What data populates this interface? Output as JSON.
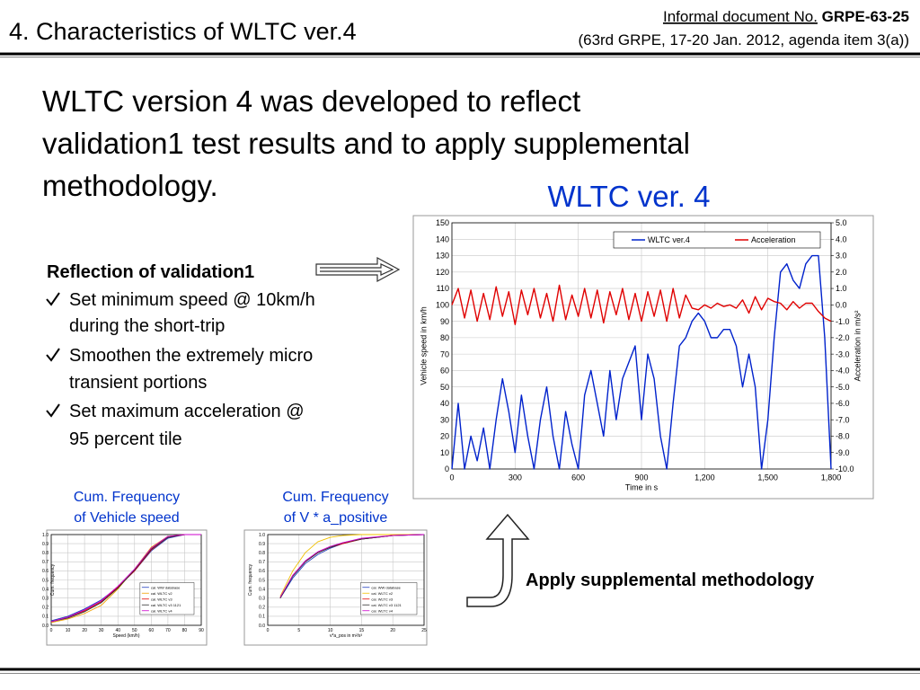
{
  "header": {
    "title": "4. Characteristics of WLTC ver.4",
    "document_label": "Informal document No.",
    "document_number": "GRPE-63-25",
    "meeting": "(63rd  GRPE,  17-20 Jan. 2012, agenda item 3(a))"
  },
  "body": {
    "lines": [
      "WLTC version 4 was developed to reflect",
      "validation1 test results and to apply supplemental",
      "methodology."
    ]
  },
  "reflection": {
    "heading": "Reflection of validation1",
    "bullets": [
      [
        "Set minimum speed @ 10km/h",
        "during the short-trip"
      ],
      [
        "Smoothen the extremely micro",
        "transient portions"
      ],
      [
        "Set maximum acceleration @",
        "95 percent tile"
      ]
    ]
  },
  "main_caption": "WLTC ver. 4",
  "methodology": "Apply supplemental methodology",
  "chart_data": [
    {
      "type": "line",
      "xlabel": "Time in s",
      "ylabel": "Vehicle speed in km/h",
      "y2label": "Acceleration in m/s²",
      "legend": "upper right",
      "grid": true,
      "x": [
        0,
        30,
        60,
        90,
        120,
        150,
        180,
        210,
        240,
        270,
        300,
        330,
        360,
        390,
        420,
        450,
        480,
        510,
        540,
        570,
        600,
        630,
        660,
        690,
        720,
        750,
        780,
        810,
        840,
        870,
        900,
        930,
        960,
        990,
        1020,
        1050,
        1080,
        1110,
        1140,
        1170,
        1200,
        1230,
        1260,
        1290,
        1320,
        1350,
        1380,
        1410,
        1440,
        1470,
        1500,
        1530,
        1560,
        1590,
        1620,
        1650,
        1680,
        1710,
        1740,
        1770,
        1800
      ],
      "xlim": [
        0,
        1800
      ],
      "xticks": [
        0,
        300,
        600,
        900,
        {
          "value": 1200,
          "label": "1,200"
        },
        {
          "value": 1500,
          "label": "1,500"
        },
        {
          "value": 1800,
          "label": "1,800"
        }
      ],
      "ylim": [
        0,
        150
      ],
      "yticks": [
        0,
        10,
        20,
        30,
        40,
        50,
        60,
        70,
        80,
        90,
        100,
        110,
        120,
        130,
        140,
        150
      ],
      "y2lim": [
        -10,
        5
      ],
      "y2ticks": [
        {
          "value": -10,
          "label": "-10.0"
        },
        {
          "value": -9,
          "label": "-9.0"
        },
        {
          "value": -8,
          "label": "-8.0"
        },
        {
          "value": -7,
          "label": "-7.0"
        },
        {
          "value": -6,
          "label": "-6.0"
        },
        {
          "value": -5,
          "label": "-5.0"
        },
        {
          "value": -4,
          "label": "-4.0"
        },
        {
          "value": -3,
          "label": "-3.0"
        },
        {
          "value": -2,
          "label": "-2.0"
        },
        {
          "value": -1,
          "label": "-1.0"
        },
        {
          "value": 0,
          "label": "0.0"
        },
        {
          "value": 1,
          "label": "1.0"
        },
        {
          "value": 2,
          "label": "2.0"
        },
        {
          "value": 3,
          "label": "3.0"
        },
        {
          "value": 4,
          "label": "4.0"
        },
        {
          "value": 5,
          "label": "5.0"
        }
      ],
      "series": [
        {
          "name": "WLTC ver.4",
          "color": "#0022cc",
          "values": [
            0,
            40,
            0,
            20,
            5,
            25,
            0,
            30,
            55,
            35,
            10,
            45,
            20,
            0,
            30,
            50,
            20,
            0,
            35,
            15,
            0,
            45,
            60,
            40,
            20,
            60,
            30,
            55,
            65,
            75,
            30,
            70,
            55,
            20,
            0,
            40,
            75,
            80,
            90,
            95,
            90,
            80,
            80,
            85,
            85,
            75,
            50,
            70,
            50,
            0,
            30,
            80,
            120,
            125,
            115,
            110,
            125,
            130,
            130,
            80,
            0
          ]
        },
        {
          "name": "Acceleration",
          "color": "#e00000",
          "axis": "y2",
          "values": [
            0,
            1,
            -0.8,
            0.9,
            -1,
            0.7,
            -0.9,
            1.1,
            -0.7,
            0.8,
            -1.2,
            0.9,
            -0.6,
            1,
            -0.8,
            0.7,
            -1,
            1.2,
            -0.9,
            0.6,
            -0.7,
            1,
            -0.8,
            0.9,
            -1.1,
            0.8,
            -0.6,
            1,
            -0.9,
            0.7,
            -1,
            0.8,
            -0.7,
            0.9,
            -1,
            1,
            -0.8,
            0.6,
            -0.2,
            -0.3,
            0,
            -0.2,
            0.1,
            -0.1,
            0,
            -0.2,
            0.3,
            -0.5,
            0.5,
            -0.3,
            0.4,
            0.2,
            0.1,
            -0.3,
            0.2,
            -0.2,
            0.1,
            0.1,
            -0.4,
            -0.8,
            -1
          ]
        }
      ]
    },
    {
      "type": "line",
      "title": [
        "Cum. Frequency",
        "of Vehicle speed"
      ],
      "xlabel": "Speed (km/h)",
      "ylabel": "Cum. frequency",
      "legend": "lower right",
      "grid": true,
      "x": [
        0,
        10,
        20,
        30,
        40,
        50,
        60,
        70,
        80,
        90
      ],
      "xlim": [
        0,
        90
      ],
      "xticks": [
        0,
        10,
        20,
        30,
        40,
        50,
        60,
        70,
        80,
        90
      ],
      "ylim": [
        0,
        1
      ],
      "yticks": [
        {
          "value": 0,
          "label": "0.0"
        },
        0.1,
        0.2,
        0.3,
        0.4,
        0.5,
        0.6,
        0.7,
        0.8,
        0.9,
        {
          "value": 1,
          "label": "1.0"
        }
      ],
      "series": [
        {
          "name": "cal. WW database",
          "color": "#1f3fbf",
          "values": [
            0.05,
            0.1,
            0.18,
            0.28,
            0.42,
            0.6,
            0.82,
            0.96,
            1,
            1
          ]
        },
        {
          "name": "cal. WLTC v2",
          "color": "#f0a000",
          "values": [
            0.03,
            0.07,
            0.13,
            0.22,
            0.4,
            0.62,
            0.86,
            0.98,
            1,
            1
          ]
        },
        {
          "name": "cal. WLTC v3",
          "color": "#e00000",
          "values": [
            0.04,
            0.09,
            0.16,
            0.26,
            0.42,
            0.6,
            0.83,
            0.97,
            1,
            1
          ]
        },
        {
          "name": "cal. WLTC v3 1121",
          "color": "#303030",
          "values": [
            0.04,
            0.08,
            0.15,
            0.25,
            0.41,
            0.61,
            0.84,
            0.97,
            1,
            1
          ]
        },
        {
          "name": "cal. WLTC v4",
          "color": "#cc00cc",
          "values": [
            0.04,
            0.09,
            0.17,
            0.27,
            0.43,
            0.62,
            0.85,
            0.98,
            1,
            1
          ]
        }
      ]
    },
    {
      "type": "line",
      "title": [
        "Cum. Frequency",
        "of  V * a_positive"
      ],
      "xlabel": "v*a_pos in m²/s³",
      "ylabel": "Cum. frequency",
      "legend": "lower right",
      "grid": true,
      "x": [
        2,
        4,
        6,
        8,
        10,
        12,
        15,
        20,
        25
      ],
      "xlim": [
        0,
        25
      ],
      "xticks": [
        0,
        5,
        10,
        15,
        20,
        25
      ],
      "ylim": [
        0,
        1
      ],
      "yticks": [
        {
          "value": 0,
          "label": "0.0"
        },
        0.1,
        0.2,
        0.3,
        0.4,
        0.5,
        0.6,
        0.7,
        0.8,
        0.9,
        {
          "value": 1,
          "label": "1.0"
        }
      ],
      "series": [
        {
          "name": "cal. WW database",
          "color": "#1f3fbf",
          "values": [
            0.3,
            0.52,
            0.68,
            0.78,
            0.85,
            0.9,
            0.95,
            0.99,
            1
          ]
        },
        {
          "name": "cal. WLTC v2",
          "color": "#f0c000",
          "values": [
            0.32,
            0.6,
            0.8,
            0.92,
            0.97,
            0.99,
            1,
            1,
            1
          ]
        },
        {
          "name": "cal. WLTC v3",
          "color": "#e00000",
          "values": [
            0.3,
            0.55,
            0.7,
            0.8,
            0.86,
            0.9,
            0.95,
            0.99,
            1
          ]
        },
        {
          "name": "cal. WLTC v3 1121",
          "color": "#303030",
          "values": [
            0.3,
            0.54,
            0.7,
            0.8,
            0.86,
            0.91,
            0.95,
            0.99,
            1
          ]
        },
        {
          "name": "cal. WLTC v4",
          "color": "#cc00cc",
          "values": [
            0.31,
            0.55,
            0.71,
            0.81,
            0.87,
            0.91,
            0.96,
            0.99,
            1
          ]
        }
      ]
    }
  ]
}
